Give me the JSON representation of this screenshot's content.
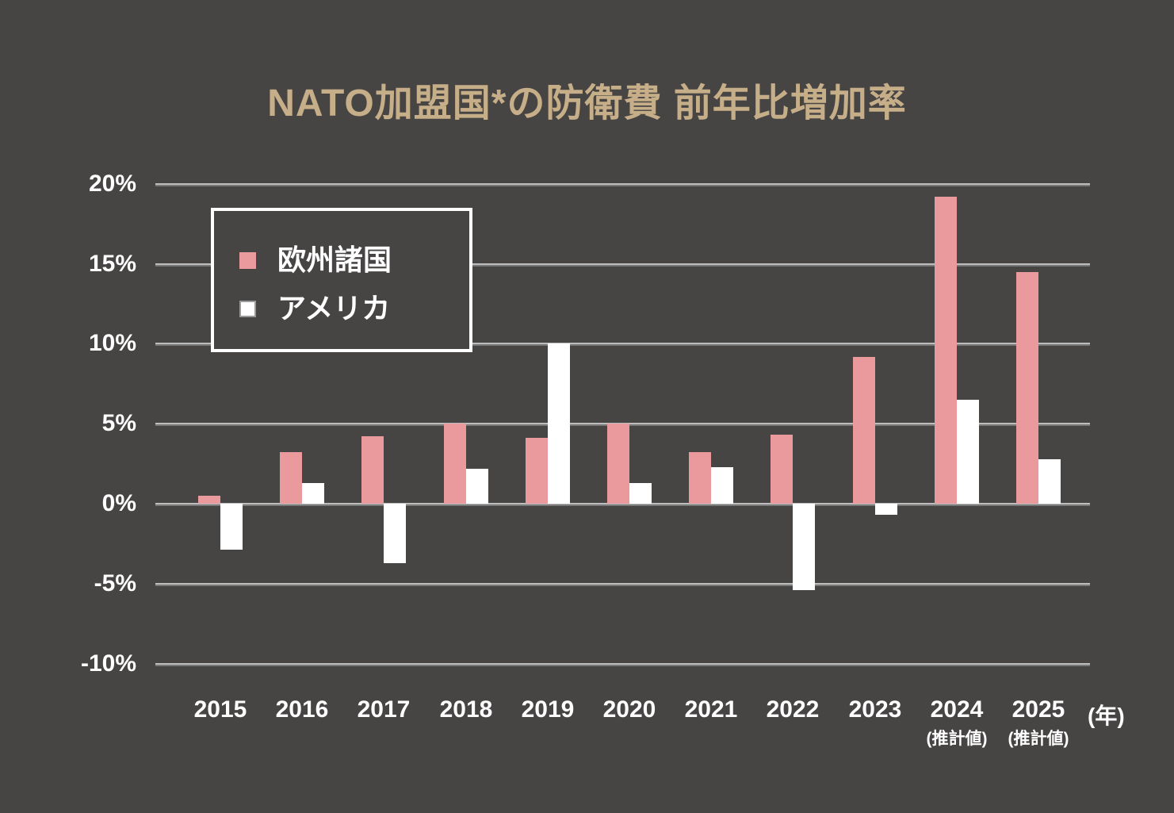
{
  "title": "NATO加盟国*の防衛費 前年比増加率",
  "colors": {
    "background": "#474444",
    "title_text": "#C6AE88",
    "axis_text": "#FFFFFF",
    "gridline_light": "#BDBDBD",
    "gridline_dark": "#787878",
    "europe_bar": "#EA9A9D",
    "us_bar": "#FFFFFF"
  },
  "legend": {
    "items": [
      {
        "label": "欧州諸国",
        "swatch_color": "#EA9A9D"
      },
      {
        "label": "アメリカ",
        "swatch_color": "#FFFFFF"
      }
    ]
  },
  "chart_data": {
    "type": "bar",
    "title": "NATO加盟国*の防衛費 前年比増加率",
    "categories": [
      "2015",
      "2016",
      "2017",
      "2018",
      "2019",
      "2020",
      "2021",
      "2022",
      "2023",
      "2024",
      "2025"
    ],
    "category_notes": [
      "",
      "",
      "",
      "",
      "",
      "",
      "",
      "",
      "",
      "(推計値)",
      "(推計値)"
    ],
    "series": [
      {
        "name": "欧州諸国",
        "key": "europe",
        "color": "#EA9A9D",
        "values": [
          0.5,
          3.2,
          4.2,
          5.0,
          4.1,
          5.0,
          3.2,
          4.3,
          9.2,
          19.2,
          14.5
        ]
      },
      {
        "name": "アメリカ",
        "key": "us",
        "color": "#FFFFFF",
        "values": [
          -2.9,
          1.3,
          -3.7,
          2.2,
          10.0,
          1.3,
          2.3,
          -5.4,
          -0.7,
          6.5,
          2.8
        ]
      }
    ],
    "ylim": [
      -10,
      20
    ],
    "ytick_step": 5,
    "ytick_labels": [
      "20%",
      "15%",
      "10%",
      "5%",
      "0%",
      "-5%",
      "-10%"
    ],
    "xaxis_unit_label": "(年)",
    "grid": true,
    "legend_position": "upper-left"
  }
}
